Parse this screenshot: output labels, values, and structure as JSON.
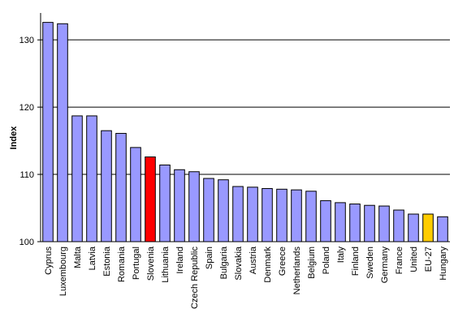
{
  "chart_data": {
    "type": "bar",
    "title": "",
    "xlabel": "",
    "ylabel": "Index",
    "ylim": [
      100,
      134
    ],
    "yticks": [
      100,
      110,
      120,
      130
    ],
    "grid": true,
    "categories": [
      "Cyprus",
      "Luxembourg",
      "Malta",
      "Latvia",
      "Estonia",
      "Romania",
      "Portugal",
      "Slovenia",
      "Lithuania",
      "Ireland",
      "Czech Republic",
      "Spain",
      "Bulgaria",
      "Slovakia",
      "Austria",
      "Denmark",
      "Greece",
      "Netherlands",
      "Belgium",
      "Poland",
      "Italy",
      "Finland",
      "Sweden",
      "Germany",
      "France",
      "United",
      "EU-27",
      "Hungary"
    ],
    "values": [
      132.6,
      132.4,
      118.7,
      118.7,
      116.5,
      116.1,
      114.0,
      112.6,
      111.4,
      110.7,
      110.4,
      109.4,
      109.2,
      108.2,
      108.1,
      107.9,
      107.8,
      107.7,
      107.5,
      106.1,
      105.8,
      105.6,
      105.4,
      105.3,
      104.7,
      104.1,
      104.1,
      103.7
    ],
    "colors": {
      "default": "#9999ff",
      "highlight": "#ff0000",
      "aggregate": "#ffcc00",
      "outline": "#000000"
    },
    "highlight_categories": {
      "Slovenia": "highlight",
      "EU-27": "aggregate"
    }
  }
}
